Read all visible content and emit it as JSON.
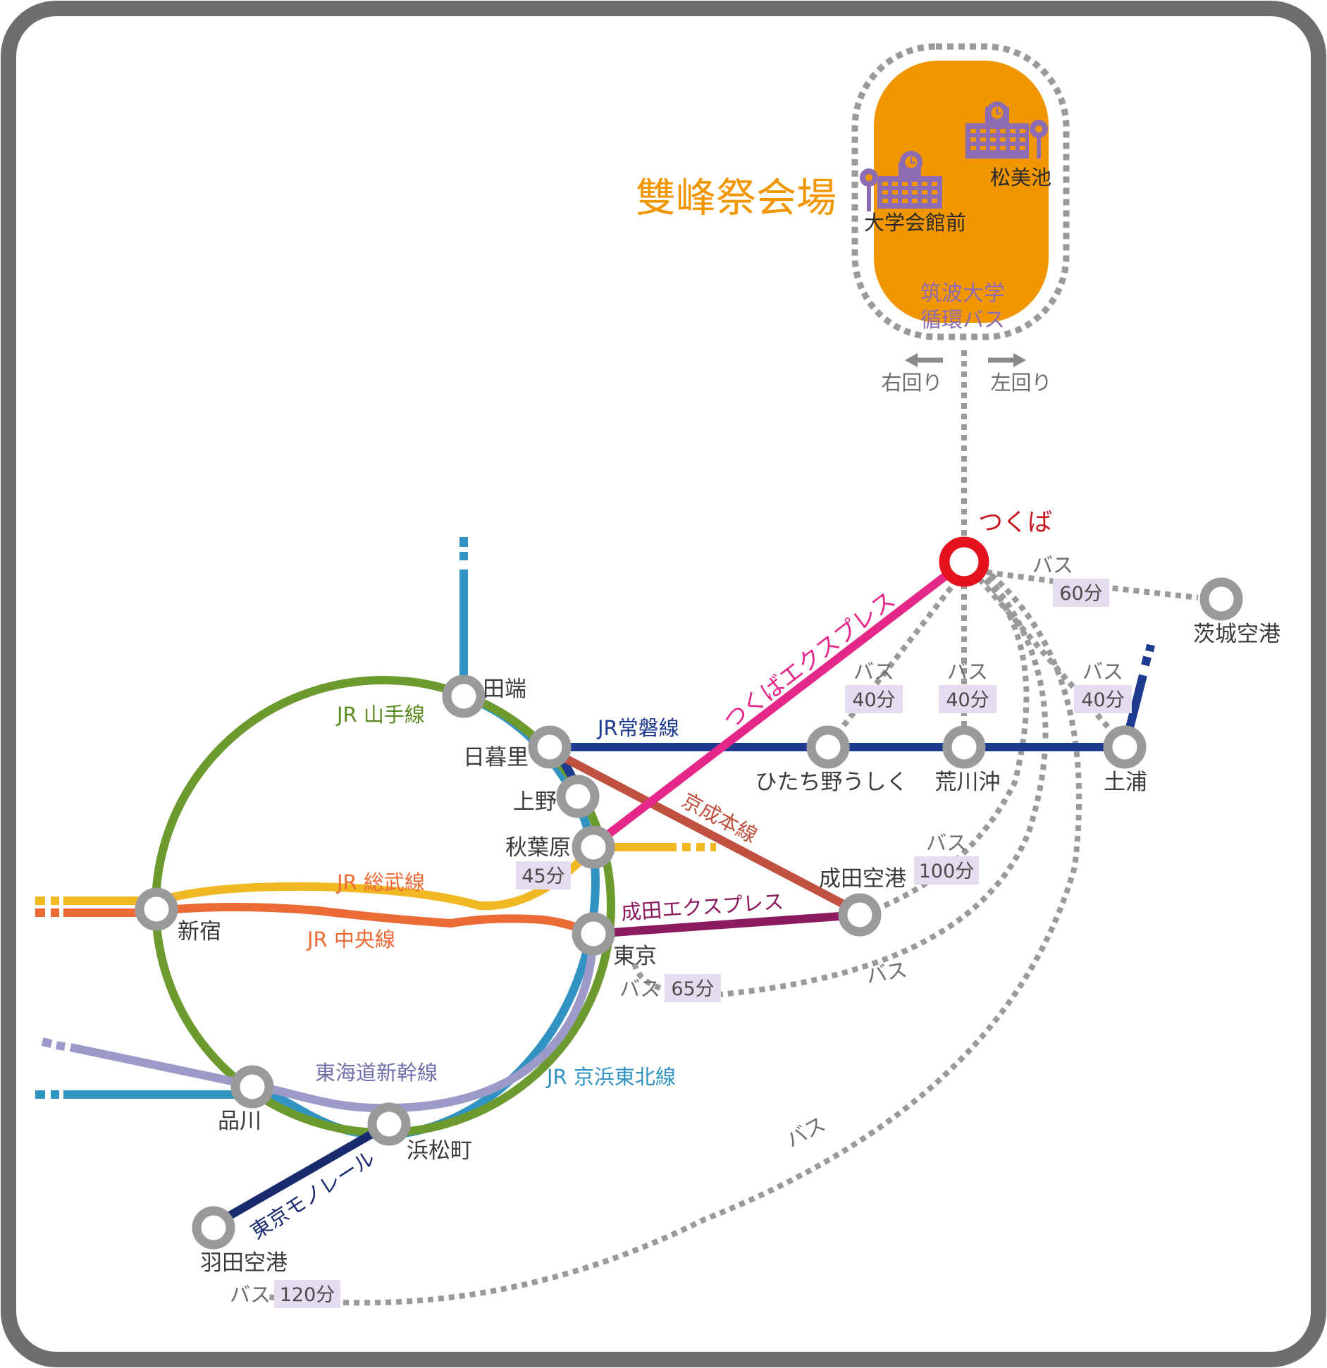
{
  "venue": {
    "title": "雙峰祭会場",
    "color": "#f29600"
  },
  "campus": {
    "bus_line": [
      "筑波大学",
      "循環バス"
    ],
    "stops": [
      "大学会館前",
      "松美池"
    ],
    "direction_right": "右回り",
    "direction_left": "左回り"
  },
  "stations": {
    "tsukuba": "つくば",
    "ibaraki_airport": "茨城空港",
    "hitachino_ushiku": "ひたち野うしく",
    "arakawaoki": "荒川沖",
    "tsuchiura": "土浦",
    "narita_airport": "成田空港",
    "tabata": "田端",
    "nippori": "日暮里",
    "ueno": "上野",
    "akihabara": "秋葉原",
    "tokyo": "東京",
    "shinjuku": "新宿",
    "shinagawa": "品川",
    "hamamatsucho": "浜松町",
    "haneda_airport": "羽田空港"
  },
  "lines": {
    "yamanote": {
      "label": "JR 山手線",
      "color": "#6d9a2e"
    },
    "joban": {
      "label": "JR常磐線",
      "color": "#1c3b8f"
    },
    "tsukuba_express": {
      "label": "つくばエクスプレス",
      "color": "#e5278a"
    },
    "keisei": {
      "label": "京成本線",
      "color": "#c0503f"
    },
    "sobu": {
      "label": "JR 総武線",
      "color": "#f2b824"
    },
    "chuo": {
      "label": "JR  中央線",
      "color": "#ec6a36"
    },
    "narita_express": {
      "label": "成田エクスプレス",
      "color": "#8c1a5e"
    },
    "tokaido_shinkansen": {
      "label": "東海道新幹線",
      "color": "#9b9ac8"
    },
    "keihin_tohoku": {
      "label": "JR 京浜東北線",
      "color": "#3193c2"
    },
    "monorail": {
      "label": "東京モノレール",
      "color": "#1a2a6e"
    }
  },
  "bus": {
    "label": "バス",
    "ibaraki": "60分",
    "hitachino": "40分",
    "arakawaoki": "40分",
    "tsuchiura": "40分",
    "narita": "100分",
    "akihabara": "45分",
    "tokyo": "65分",
    "haneda": "120分"
  },
  "colors": {
    "frame": "#6e6e6e",
    "dotted_route": "#9a9a9a",
    "tsukuba_station": "#e5111d",
    "station_ring": "#9a9a9a",
    "campus_accent": "#8e6cb2"
  }
}
